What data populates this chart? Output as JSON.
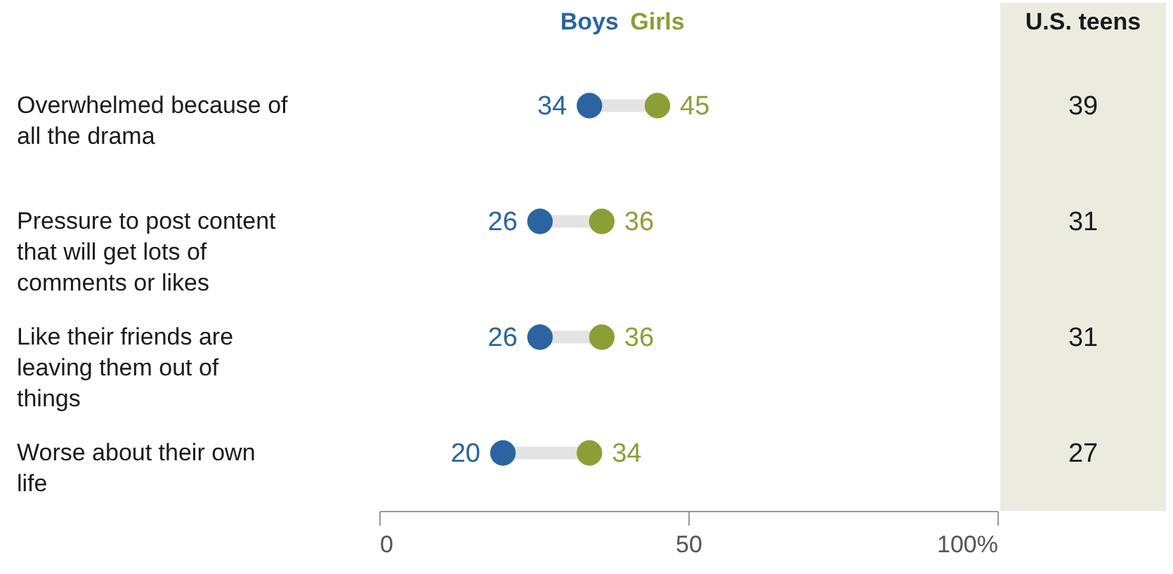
{
  "chart_data": [
    {
      "type": "scatter",
      "orientation": "horizontal",
      "categories": [
        "Overwhelmed because of all the drama",
        "Pressure to post content that will get lots of comments or likes",
        "Like their friends are leaving them out of things",
        "Worse about their own life"
      ],
      "series": [
        {
          "name": "Boys",
          "color": "#2b64a0",
          "values": [
            34,
            26,
            26,
            20
          ]
        },
        {
          "name": "Girls",
          "color": "#8b9f37",
          "values": [
            45,
            36,
            36,
            34
          ]
        }
      ],
      "xlim": [
        0,
        100
      ],
      "xticks": [
        0,
        50,
        {
          "value": 100,
          "label": "100%"
        }
      ],
      "data_labels": true,
      "grid": false,
      "legend": "top",
      "marker": "circle"
    },
    {
      "type": "other",
      "title": "U.S. teens",
      "categories": [
        null,
        null,
        null,
        null
      ],
      "values": [
        39,
        31,
        31,
        27
      ],
      "data_labels": true
    }
  ]
}
